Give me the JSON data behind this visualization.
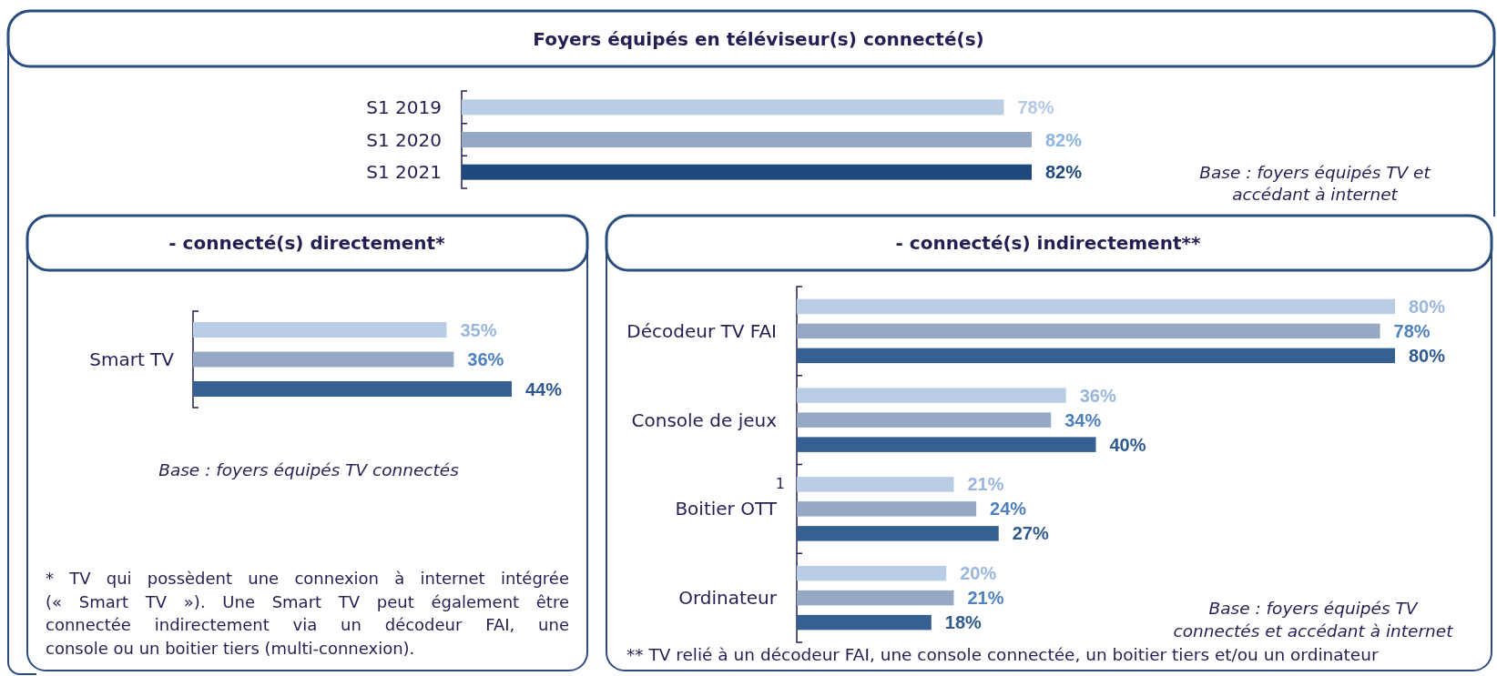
{
  "chart_data": [
    {
      "type": "bar",
      "orientation": "horizontal",
      "title": "Foyers équipés en téléviseur(s) connecté(s)",
      "categories": [
        "S1 2019",
        "S1 2020",
        "S1 2021"
      ],
      "values": [
        78,
        82,
        82
      ],
      "colors": [
        "#b9cde5",
        "#95a9c5",
        "#1f497d"
      ],
      "value_labels": [
        "78%",
        "82%",
        "82%"
      ],
      "annotations": [
        "Base : foyers équipés TV et\naccédant à internet"
      ]
    },
    {
      "type": "bar",
      "orientation": "horizontal",
      "title": "- connecté(s) directement*",
      "categories": [
        "Smart TV"
      ],
      "series": [
        {
          "color": "#b9cde5",
          "values": [
            35
          ],
          "value_labels": [
            "35%"
          ]
        },
        {
          "color": "#95a9c5",
          "values": [
            36
          ],
          "value_labels": [
            "36%"
          ]
        },
        {
          "color": "#376092",
          "values": [
            44
          ],
          "value_labels": [
            "44%"
          ]
        }
      ],
      "annotations": [
        "Base : foyers équipés TV connectés",
        "* TV qui possèdent une connexion à internet intégrée\n(« Smart TV »). Une Smart TV peut également être\nconnectée indirectement via un décodeur FAI, une\nconsole ou un boitier tiers (multi-connexion)."
      ]
    },
    {
      "type": "bar",
      "orientation": "horizontal",
      "title": "- connecté(s) indirectement**",
      "categories": [
        "Décodeur TV FAI",
        "Console de jeux",
        "Boitier OTT",
        "Ordinateur"
      ],
      "series": [
        {
          "color": "#b9cde5",
          "values": [
            80,
            36,
            21,
            20
          ],
          "value_labels": [
            "80%",
            "36%",
            "21%",
            "20%"
          ]
        },
        {
          "color": "#95a9c5",
          "values": [
            78,
            34,
            24,
            21
          ],
          "value_labels": [
            "78%",
            "34%",
            "24%",
            "21%"
          ]
        },
        {
          "color": "#376092",
          "values": [
            80,
            40,
            27,
            18
          ],
          "value_labels": [
            "80%",
            "40%",
            "27%",
            "18%"
          ]
        }
      ],
      "annotations": [
        "1",
        "Base : foyers équipés TV\nconnectés et accédant à internet",
        "** TV relié à un décodeur FAI, une console connectée, un boitier tiers et/ou un ordinateur"
      ]
    }
  ]
}
